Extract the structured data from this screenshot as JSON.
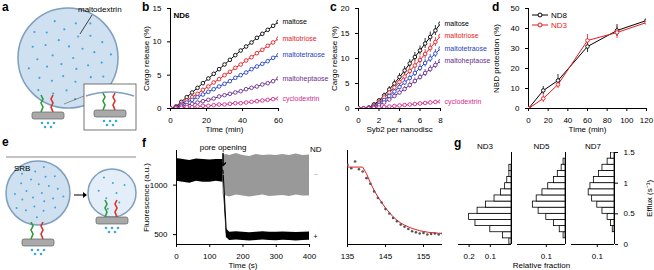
{
  "chart_data": [
    {
      "type": "diagram",
      "panel": "a",
      "annotations": [
        "maltodextrin"
      ]
    },
    {
      "type": "line",
      "panel": "b",
      "annotations": [
        "ND6"
      ],
      "xlabel": "Time (min)",
      "ylabel": "Cargo release (%)",
      "marker": "circle",
      "x": [
        0,
        3,
        6,
        9,
        12,
        15,
        18,
        21,
        24,
        27,
        30,
        33,
        36,
        39,
        42,
        45,
        48,
        51,
        54,
        57,
        60
      ],
      "xlim": [
        0,
        60
      ],
      "xticks": [
        0,
        20,
        40,
        60
      ],
      "ylim": [
        0,
        15
      ],
      "yticks": [
        0,
        5,
        10,
        15
      ],
      "series": [
        {
          "name": "maltose",
          "color": "#000000",
          "values": [
            0,
            0.3,
            1,
            1.7,
            2.4,
            3.1,
            3.8,
            4.5,
            5.2,
            5.9,
            6.6,
            7.3,
            8,
            8.7,
            9.3,
            9.9,
            10.6,
            11.2,
            11.8,
            12.4,
            13
          ]
        },
        {
          "name": "maltotriose",
          "color": "#e8191e",
          "values": [
            0,
            0.2,
            0.7,
            1.2,
            1.7,
            2.2,
            2.8,
            3.3,
            3.9,
            4.4,
            5,
            5.5,
            6.1,
            6.6,
            7.2,
            7.7,
            8.3,
            8.8,
            9.4,
            9.9,
            10.5
          ]
        },
        {
          "name": "maltotetraose",
          "color": "#1f3fc4",
          "values": [
            0,
            0.1,
            0.5,
            0.9,
            1.3,
            1.7,
            2.1,
            2.5,
            2.9,
            3.3,
            3.7,
            4.1,
            4.6,
            5,
            5.4,
            5.9,
            6.3,
            6.7,
            7.1,
            7.6,
            8
          ]
        },
        {
          "name": "maltoheptaose",
          "color": "#6a2c91",
          "values": [
            0,
            0.1,
            0.3,
            0.5,
            0.7,
            0.9,
            1.1,
            1.3,
            1.5,
            1.8,
            2,
            2.2,
            2.4,
            2.6,
            2.9,
            3.1,
            3.3,
            3.6,
            3.8,
            4.1,
            4.5
          ]
        },
        {
          "name": "cyclodextrin",
          "color": "#d42a8c",
          "values": [
            0,
            0,
            0.1,
            0.2,
            0.2,
            0.3,
            0.4,
            0.4,
            0.5,
            0.6,
            0.6,
            0.7,
            0.8,
            0.8,
            0.9,
            1,
            1.1,
            1.2,
            1.3,
            1.4,
            1.5
          ]
        }
      ]
    },
    {
      "type": "line",
      "panel": "c",
      "xlabel": "Syb2 per nanodisc",
      "ylabel": "Cargo release (%)",
      "marker": "circle",
      "x": [
        0,
        0.5,
        1,
        1.5,
        2,
        2.5,
        3,
        3.5,
        4,
        4.5,
        5,
        5.5,
        6,
        6.5,
        7,
        7.5,
        8
      ],
      "xlim": [
        0,
        8
      ],
      "xticks": [
        0,
        2,
        4,
        6,
        8
      ],
      "ylim": [
        0,
        20
      ],
      "yticks": [
        0,
        5,
        10,
        15,
        20
      ],
      "series": [
        {
          "name": "maltose",
          "color": "#000000",
          "values": [
            0,
            0,
            0.2,
            0.8,
            1.6,
            2.6,
            3.8,
            5,
            6.3,
            7.6,
            9,
            10.3,
            11.6,
            13,
            14.3,
            15.6,
            17
          ],
          "errors": [
            0,
            0,
            0.1,
            0.3,
            0.4,
            0.5,
            0.6,
            0.7,
            0.7,
            0.8,
            0.8,
            0.9,
            0.9,
            1,
            1,
            1,
            1.1
          ]
        },
        {
          "name": "maltotriose",
          "color": "#e8191e",
          "values": [
            0,
            0,
            0.1,
            0.6,
            1.3,
            2.2,
            3.2,
            4.2,
            5.3,
            6.4,
            7.5,
            8.6,
            9.7,
            10.9,
            12.1,
            13.3,
            14.5
          ],
          "errors": [
            0,
            0,
            0.1,
            0.2,
            0.3,
            0.4,
            0.5,
            0.6,
            0.6,
            0.7,
            0.7,
            0.8,
            0.8,
            0.9,
            0.9,
            0.9,
            1
          ]
        },
        {
          "name": "maltotetraose",
          "color": "#1f3fc4",
          "values": [
            0,
            0,
            0.1,
            0.4,
            1,
            1.7,
            2.5,
            3.4,
            4.3,
            5.2,
            6.1,
            7.1,
            8.1,
            9.1,
            10,
            11,
            12
          ],
          "errors": [
            0,
            0,
            0.1,
            0.2,
            0.3,
            0.4,
            0.4,
            0.5,
            0.5,
            0.6,
            0.6,
            0.7,
            0.7,
            0.8,
            0.8,
            0.8,
            0.9
          ]
        },
        {
          "name": "maltoheptaose",
          "color": "#6a2c91",
          "values": [
            0,
            0,
            0,
            0.3,
            0.7,
            1.2,
            1.8,
            2.5,
            3.2,
            3.9,
            4.7,
            5.5,
            6.3,
            7.1,
            7.9,
            8.7,
            9.5
          ],
          "errors": [
            0,
            0,
            0,
            0.2,
            0.2,
            0.3,
            0.4,
            0.4,
            0.5,
            0.5,
            0.6,
            0.6,
            0.6,
            0.7,
            0.7,
            0.7,
            0.8
          ]
        },
        {
          "name": "cyclodextrin",
          "color": "#d42a8c",
          "values": [
            0,
            0,
            0,
            0.1,
            0.2,
            0.3,
            0.4,
            0.5,
            0.6,
            0.7,
            0.8,
            0.9,
            1,
            1.1,
            1.2,
            1.3,
            1.4
          ],
          "errors": [
            0,
            0,
            0,
            0.1,
            0.1,
            0.1,
            0.1,
            0.2,
            0.2,
            0.2,
            0.2,
            0.2,
            0.3,
            0.3,
            0.3,
            0.3,
            0.3
          ]
        }
      ]
    },
    {
      "type": "line",
      "panel": "d",
      "xlabel": "Time (min)",
      "ylabel": "NBD protection (%)",
      "marker": "circle",
      "legend": "top-left",
      "x": [
        0,
        15,
        30,
        60,
        90,
        120
      ],
      "xlim": [
        0,
        120
      ],
      "xticks": [
        0,
        20,
        40,
        60,
        80,
        100,
        120
      ],
      "ylim": [
        0,
        50
      ],
      "yticks": [
        0,
        10,
        20,
        30,
        40,
        50
      ],
      "series": [
        {
          "name": "ND8",
          "color": "#000000",
          "values": [
            0,
            9,
            14,
            31,
            39,
            44
          ],
          "errors": [
            0,
            2,
            3,
            3,
            3,
            4
          ]
        },
        {
          "name": "ND3",
          "color": "#e8191e",
          "values": [
            0,
            5,
            12,
            34,
            38,
            43
          ],
          "errors": [
            0,
            2,
            2,
            3,
            3,
            3
          ]
        }
      ]
    },
    {
      "type": "diagram",
      "panel": "e",
      "annotations": [
        "SRB"
      ]
    },
    {
      "type": "line",
      "panel": "f",
      "xlabel": "Time (s)",
      "ylabel": "Fluorescence (a.u.)",
      "annotations": [
        {
          "text": "pore opening",
          "x": 140,
          "y": 1320
        },
        {
          "text": "ND"
        }
      ],
      "x": [
        0,
        20,
        40,
        60,
        80,
        100,
        120,
        140,
        150,
        160,
        180,
        200,
        220,
        240,
        260,
        280,
        300,
        320,
        340,
        360,
        380,
        400
      ],
      "xlim": [
        0,
        400
      ],
      "xticks": [
        0,
        100,
        200,
        300,
        400
      ],
      "ylim": [
        400,
        1350
      ],
      "yticks": [
        500,
        1000
      ],
      "series": [
        {
          "name": "+",
          "color": "#000000",
          "values": [
            1160,
            1150,
            1140,
            1155,
            1150,
            1145,
            1150,
            1150,
            520,
            480,
            485,
            480,
            475,
            480,
            485,
            480,
            478,
            482,
            480,
            476,
            480,
            482
          ],
          "low": [
            1040,
            1030,
            1020,
            1040,
            1030,
            1030,
            1040,
            1030,
            470,
            440,
            445,
            440,
            435,
            440,
            445,
            440,
            438,
            442,
            440,
            436,
            440,
            442
          ],
          "high": [
            1270,
            1260,
            1250,
            1265,
            1260,
            1255,
            1260,
            1260,
            560,
            525,
            530,
            525,
            520,
            525,
            530,
            525,
            523,
            527,
            525,
            521,
            525,
            527
          ]
        },
        {
          "name": "−",
          "color": "#999999",
          "values": [
            null,
            null,
            null,
            null,
            null,
            null,
            null,
            1110,
            1100,
            1095,
            1105,
            1100,
            1090,
            1100,
            1105,
            1095,
            1100,
            1100,
            1095,
            1105,
            1100,
            1100
          ],
          "low": [
            null,
            null,
            null,
            null,
            null,
            null,
            null,
            900,
            890,
            880,
            900,
            890,
            880,
            890,
            900,
            885,
            890,
            895,
            885,
            900,
            890,
            890
          ],
          "high": [
            null,
            null,
            null,
            null,
            null,
            null,
            null,
            1300,
            1310,
            1300,
            1320,
            1300,
            1290,
            1310,
            1300,
            1305,
            1300,
            1310,
            1300,
            1315,
            1300,
            1305
          ]
        }
      ]
    },
    {
      "type": "scatter",
      "tick_labels": "x",
      "x": [
        135,
        136,
        137,
        138,
        139,
        140,
        141,
        142,
        143,
        144,
        145,
        146,
        147,
        148,
        149,
        150,
        151,
        152,
        153,
        154,
        155,
        156,
        157,
        158,
        159,
        160
      ],
      "xlim": [
        135,
        160
      ],
      "xticks": [
        135,
        145,
        155
      ],
      "ylim": [
        400,
        1250
      ],
      "series": [
        {
          "type": "scatter",
          "color": "#555555",
          "values": [
            1120,
            1090,
            1150,
            1080,
            1060,
            1000,
            950,
            880,
            820,
            780,
            720,
            680,
            640,
            610,
            580,
            560,
            540,
            520,
            510,
            500,
            505,
            490,
            495,
            500,
            490,
            500
          ]
        },
        {
          "type": "line",
          "color": "#e8191e",
          "values": [
            1100,
            1100,
            1100,
            1100,
            1100,
            1040,
            960,
            890,
            830,
            780,
            730,
            690,
            650,
            620,
            595,
            575,
            560,
            545,
            535,
            525,
            518,
            512,
            508,
            505,
            502,
            500
          ]
        }
      ]
    },
    {
      "type": "histogram",
      "panel": "g",
      "title": "ND3",
      "orientation": "horizontal",
      "tick_labels": "x",
      "color": "#000000",
      "bins": [
        0,
        0.1,
        0.2,
        0.3,
        0.4,
        0.5,
        0.6,
        0.7,
        0.8,
        0.9,
        1,
        1.1,
        1.2,
        1.3,
        1.4,
        1.5
      ],
      "counts": [
        0.01,
        0.04,
        0.1,
        0.17,
        0.2,
        0.16,
        0.12,
        0.08,
        0.05,
        0.03,
        0.02,
        0.01,
        0.01,
        0,
        0
      ],
      "xlim": [
        0.25,
        0
      ],
      "xticks": [
        0.2,
        0.1
      ],
      "ylim": [
        0,
        1.5
      ]
    },
    {
      "type": "histogram",
      "title": "ND5",
      "orientation": "horizontal",
      "tick_labels": "x",
      "color": "#000000",
      "xlabel": "Relative fraction",
      "bins": [
        0,
        0.1,
        0.2,
        0.3,
        0.4,
        0.5,
        0.6,
        0.7,
        0.8,
        0.9,
        1,
        1.1,
        1.2,
        1.3,
        1.4,
        1.5
      ],
      "counts": [
        0,
        0.01,
        0.03,
        0.06,
        0.1,
        0.14,
        0.17,
        0.15,
        0.12,
        0.09,
        0.06,
        0.04,
        0.02,
        0.01,
        0
      ],
      "xlim": [
        0.25,
        0
      ],
      "xticks": [
        0.1
      ],
      "ylim": [
        0,
        1.5
      ]
    },
    {
      "type": "histogram",
      "title": "ND7",
      "orientation": "horizontal",
      "color": "#000000",
      "ylabel": "Efflux (s⁻¹)",
      "bins": [
        0,
        0.1,
        0.2,
        0.3,
        0.4,
        0.5,
        0.6,
        0.7,
        0.8,
        0.9,
        1,
        1.1,
        1.2,
        1.3,
        1.4,
        1.5
      ],
      "counts": [
        0,
        0,
        0.01,
        0.02,
        0.04,
        0.07,
        0.1,
        0.13,
        0.15,
        0.14,
        0.12,
        0.09,
        0.07,
        0.04,
        0.02
      ],
      "xlim": [
        0.25,
        0
      ],
      "xticks": [
        0.1
      ],
      "ylim": [
        0,
        1.5
      ],
      "yticks": [
        0,
        0.5,
        1,
        1.5
      ]
    }
  ]
}
